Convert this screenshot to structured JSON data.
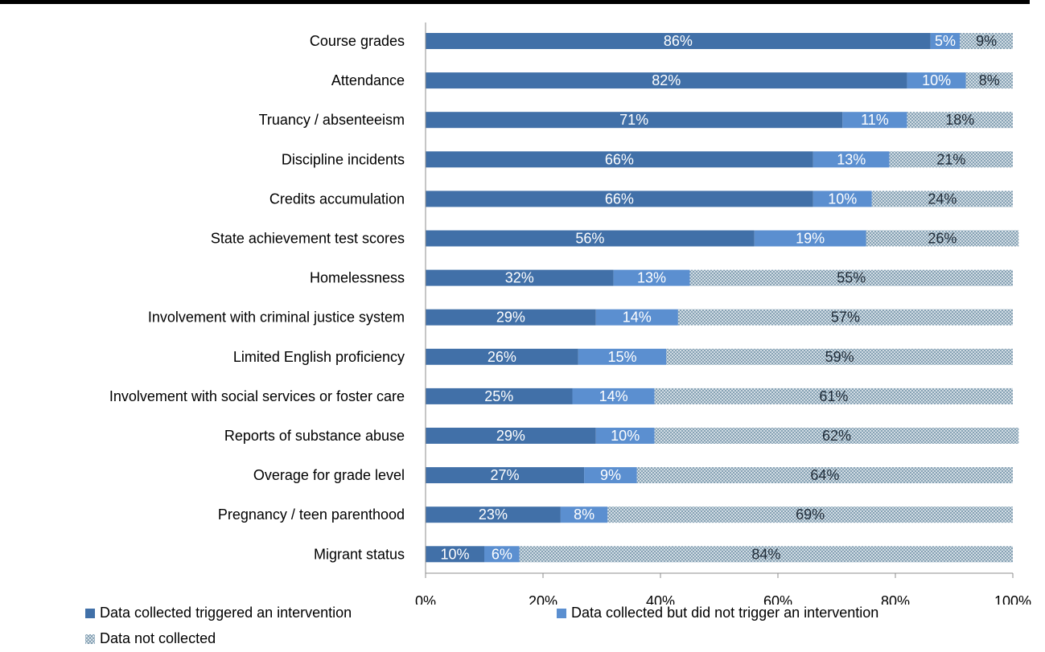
{
  "chart_data": {
    "type": "bar",
    "orientation": "horizontal",
    "stacked": true,
    "categories": [
      "Course grades",
      "Attendance",
      "Truancy / absenteeism",
      "Discipline incidents",
      "Credits accumulation",
      "State achievement test scores",
      "Homelessness",
      "Involvement with criminal justice system",
      "Limited English proficiency",
      "Involvement with social services or foster care",
      "Reports of substance abuse",
      "Overage for grade level",
      "Pregnancy / teen parenthood",
      "Migrant status"
    ],
    "series": [
      {
        "name": "Data collected triggered an intervention",
        "color": "#4170a8",
        "values": [
          86,
          82,
          71,
          66,
          66,
          56,
          32,
          29,
          26,
          25,
          29,
          27,
          23,
          10
        ]
      },
      {
        "name": "Data collected but did not trigger an intervention",
        "color": "#5b8fd0",
        "values": [
          5,
          10,
          11,
          13,
          10,
          19,
          13,
          14,
          15,
          14,
          10,
          9,
          8,
          6
        ]
      },
      {
        "name": "Data not collected",
        "color": "hatch",
        "values": [
          9,
          8,
          18,
          21,
          24,
          26,
          55,
          57,
          59,
          61,
          62,
          64,
          69,
          84
        ]
      }
    ],
    "xlim": [
      0,
      100
    ],
    "xticks": [
      "0%",
      "20%",
      "40%",
      "60%",
      "80%",
      "100%"
    ],
    "data_label_suffix": "%",
    "gridlines": false,
    "legend_position": "bottom"
  }
}
